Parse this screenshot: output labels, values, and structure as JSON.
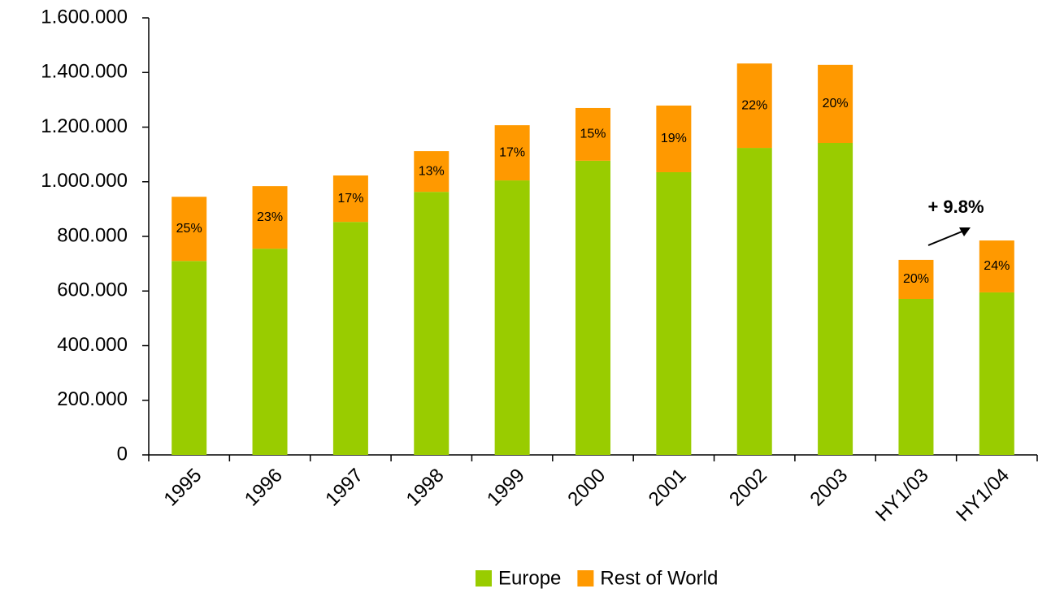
{
  "chart_data": {
    "type": "stacked_bar",
    "categories": [
      "1995",
      "1996",
      "1997",
      "1998",
      "1999",
      "2000",
      "2001",
      "2002",
      "2003",
      "HY1/03",
      "HY1/04"
    ],
    "series": [
      {
        "name": "Europe",
        "color": "#99cc00",
        "values": [
          710000,
          755000,
          853000,
          963000,
          1005000,
          1077000,
          1035000,
          1124000,
          1142000,
          571000,
          595000
        ]
      },
      {
        "name": "Rest of World",
        "color": "#ff9900",
        "values": [
          235000,
          229000,
          170000,
          149000,
          202000,
          193000,
          244000,
          309000,
          286000,
          143000,
          190000
        ],
        "share_labels": [
          "25%",
          "23%",
          "17%",
          "13%",
          "17%",
          "15%",
          "19%",
          "22%",
          "20%",
          "20%",
          "24%"
        ]
      }
    ],
    "ylim": [
      0,
      1600000
    ],
    "yticks": [
      0,
      {
        "value": 200000,
        "label": "200.000"
      },
      {
        "value": 400000,
        "label": "400.000"
      },
      {
        "value": 600000,
        "label": "600.000"
      },
      {
        "value": 800000,
        "label": "800.000"
      },
      {
        "value": 1000000,
        "label": "1.000.000"
      },
      {
        "value": 1200000,
        "label": "1.200.000"
      },
      {
        "value": 1400000,
        "label": "1.400.000"
      },
      {
        "value": 1600000,
        "label": "1.600.000"
      }
    ],
    "annotation": "+ 9.8%",
    "grid": false,
    "legend": "bottom"
  }
}
